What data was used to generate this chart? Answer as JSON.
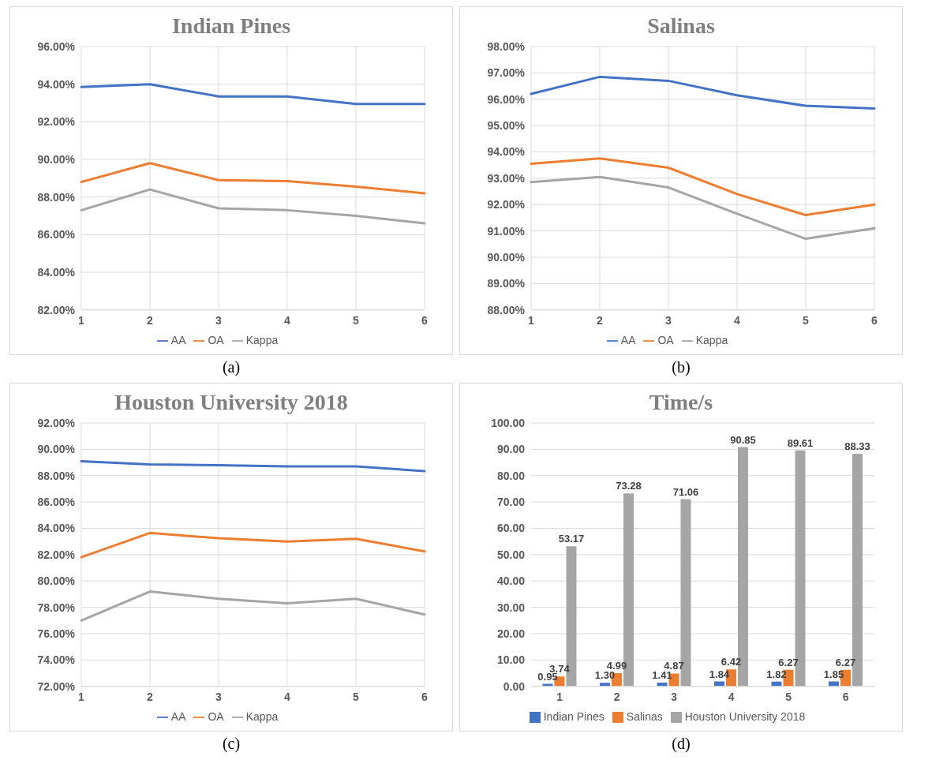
{
  "chart_data": [
    {
      "type": "line",
      "title": "Indian Pines",
      "categories": [
        "1",
        "2",
        "3",
        "4",
        "5",
        "6"
      ],
      "series": [
        {
          "name": "AA",
          "color": "#4472c4",
          "values": [
            93.85,
            94.0,
            93.35,
            93.35,
            92.95,
            92.95
          ]
        },
        {
          "name": "OA",
          "color": "#ed7d31",
          "values": [
            88.8,
            89.8,
            88.9,
            88.85,
            88.55,
            88.2
          ]
        },
        {
          "name": "Kappa",
          "color": "#a5a5a5",
          "values": [
            87.3,
            88.4,
            87.4,
            87.3,
            87.0,
            86.6
          ]
        }
      ],
      "ylim": [
        82,
        96
      ],
      "yticks": [
        {
          "value": 82,
          "label": "82.00%"
        },
        {
          "value": 84,
          "label": "84.00%"
        },
        {
          "value": 86,
          "label": "86.00%"
        },
        {
          "value": 88,
          "label": "88.00%"
        },
        {
          "value": 90,
          "label": "90.00%"
        },
        {
          "value": 92,
          "label": "92.00%"
        },
        {
          "value": 94,
          "label": "94.00%"
        },
        {
          "value": 96,
          "label": "96.00%"
        }
      ],
      "grid": true,
      "legend": "bottom",
      "marker": "none",
      "line_style": "solid",
      "annotations": [
        "(a)"
      ]
    },
    {
      "type": "line",
      "title": "Salinas",
      "categories": [
        "1",
        "2",
        "3",
        "4",
        "5",
        "6"
      ],
      "series": [
        {
          "name": "AA",
          "color": "#4472c4",
          "values": [
            96.2,
            96.85,
            96.7,
            96.15,
            95.75,
            95.65
          ]
        },
        {
          "name": "OA",
          "color": "#ed7d31",
          "values": [
            93.55,
            93.75,
            93.4,
            92.4,
            91.6,
            92.0
          ]
        },
        {
          "name": "Kappa",
          "color": "#a5a5a5",
          "values": [
            92.85,
            93.05,
            92.65,
            91.65,
            90.7,
            91.1
          ]
        }
      ],
      "ylim": [
        88,
        98
      ],
      "yticks": [
        {
          "value": 88,
          "label": "88.00%"
        },
        {
          "value": 89,
          "label": "89.00%"
        },
        {
          "value": 90,
          "label": "90.00%"
        },
        {
          "value": 91,
          "label": "91.00%"
        },
        {
          "value": 92,
          "label": "92.00%"
        },
        {
          "value": 93,
          "label": "93.00%"
        },
        {
          "value": 94,
          "label": "94.00%"
        },
        {
          "value": 95,
          "label": "95.00%"
        },
        {
          "value": 96,
          "label": "96.00%"
        },
        {
          "value": 97,
          "label": "97.00%"
        },
        {
          "value": 98,
          "label": "98.00%"
        }
      ],
      "grid": true,
      "legend": "bottom",
      "marker": "none",
      "line_style": "solid",
      "annotations": [
        "(b)"
      ]
    },
    {
      "type": "line",
      "title": "Houston University 2018",
      "categories": [
        "1",
        "2",
        "3",
        "4",
        "5",
        "6"
      ],
      "series": [
        {
          "name": "AA",
          "color": "#4472c4",
          "values": [
            89.1,
            88.85,
            88.8,
            88.7,
            88.7,
            88.35
          ]
        },
        {
          "name": "OA",
          "color": "#ed7d31",
          "values": [
            81.8,
            83.65,
            83.25,
            83.0,
            83.2,
            82.25
          ]
        },
        {
          "name": "Kappa",
          "color": "#a5a5a5",
          "values": [
            77.0,
            79.2,
            78.65,
            78.3,
            78.65,
            77.45
          ]
        }
      ],
      "ylim": [
        72,
        92
      ],
      "yticks": [
        {
          "value": 72,
          "label": "72.00%"
        },
        {
          "value": 74,
          "label": "74.00%"
        },
        {
          "value": 76,
          "label": "76.00%"
        },
        {
          "value": 78,
          "label": "78.00%"
        },
        {
          "value": 80,
          "label": "80.00%"
        },
        {
          "value": 82,
          "label": "82.00%"
        },
        {
          "value": 84,
          "label": "84.00%"
        },
        {
          "value": 86,
          "label": "86.00%"
        },
        {
          "value": 88,
          "label": "88.00%"
        },
        {
          "value": 90,
          "label": "90.00%"
        },
        {
          "value": 92,
          "label": "92.00%"
        }
      ],
      "grid": true,
      "legend": "bottom",
      "marker": "none",
      "line_style": "solid",
      "annotations": [
        "(c)"
      ]
    },
    {
      "type": "bar",
      "title": "Time/s",
      "categories": [
        "1",
        "2",
        "3",
        "4",
        "5",
        "6"
      ],
      "series": [
        {
          "name": "Indian Pines",
          "color": "#4472c4",
          "values": [
            0.95,
            1.3,
            1.41,
            1.84,
            1.82,
            1.85
          ],
          "value_labels": [
            "0.95",
            "1.30",
            "1.41",
            "1.84",
            "1.82",
            "1.85"
          ]
        },
        {
          "name": "Salinas",
          "color": "#ed7d31",
          "values": [
            3.74,
            4.99,
            4.87,
            6.42,
            6.27,
            6.27
          ],
          "value_labels": [
            "3.74",
            "4.99",
            "4.87",
            "6.42",
            "6.27",
            "6.27"
          ]
        },
        {
          "name": "Houston University 2018",
          "color": "#a5a5a5",
          "values": [
            53.17,
            73.28,
            71.06,
            90.85,
            89.61,
            88.33
          ],
          "value_labels": [
            "53.17",
            "73.28",
            "71.06",
            "90.85",
            "89.61",
            "88.33"
          ]
        }
      ],
      "ylim": [
        0,
        100
      ],
      "yticks": [
        {
          "value": 0,
          "label": "0.00"
        },
        {
          "value": 10,
          "label": "10.00"
        },
        {
          "value": 20,
          "label": "20.00"
        },
        {
          "value": 30,
          "label": "30.00"
        },
        {
          "value": 40,
          "label": "40.00"
        },
        {
          "value": 50,
          "label": "50.00"
        },
        {
          "value": 60,
          "label": "60.00"
        },
        {
          "value": 70,
          "label": "70.00"
        },
        {
          "value": 80,
          "label": "80.00"
        },
        {
          "value": 90,
          "label": "90.00"
        },
        {
          "value": 100,
          "label": "100.00"
        }
      ],
      "grid": "y",
      "legend": "bottom",
      "annotations": [
        "(d)"
      ]
    }
  ]
}
